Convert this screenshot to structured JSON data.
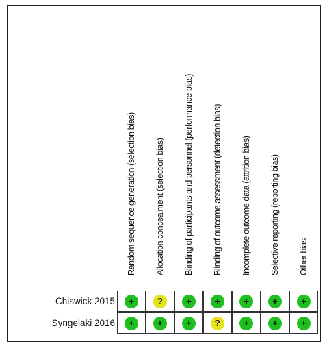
{
  "columns": [
    "Random sequence generation (selection bias)",
    "Allocation concealment (selection bias)",
    "Blinding of participants and personnel (performance bias)",
    "Blinding of outcome assessment (detection bias)",
    "Incomplete outcome data (attrition bias)",
    "Selective reporting (reporting bias)",
    "Other bias"
  ],
  "studies": [
    {
      "name": "Chiswick 2015",
      "judgements": [
        "+",
        "?",
        "+",
        "+",
        "+",
        "+",
        "+"
      ]
    },
    {
      "name": "Syngelaki 2016",
      "judgements": [
        "+",
        "+",
        "+",
        "?",
        "+",
        "+",
        "+"
      ]
    }
  ],
  "colors": {
    "low": "#1fbf1f",
    "unclear": "#e6e21c",
    "high": "#e02020"
  }
}
